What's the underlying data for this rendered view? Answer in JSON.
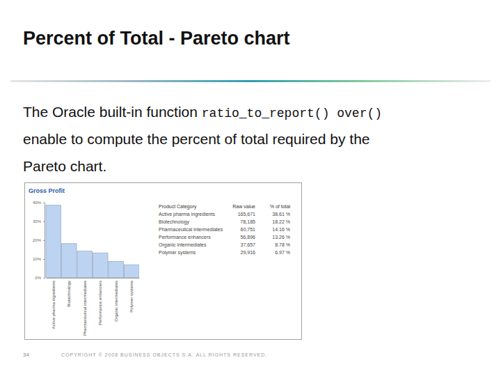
{
  "slide": {
    "title": "Percent of Total - Pareto chart",
    "body": [
      {
        "text": "The Oracle built-in function ",
        "code": "ratio_to_report() over()"
      },
      {
        "text": "enable to compute the percent of total required by the"
      },
      {
        "text": "Pareto chart."
      }
    ],
    "page_number": "34",
    "footer": "COPYRIGHT © 2008 BUSINESS OBJECTS S.A. ALL RIGHTS RESERVED."
  },
  "chart_data": {
    "type": "bar",
    "title": "Gross Profit",
    "categories": [
      "Active pharma ingredients",
      "Biotechnology",
      "Pharmaceutical intermediates",
      "Performance enhancers",
      "Organic intermediates",
      "Polymer systems"
    ],
    "values": [
      38.61,
      18.22,
      14.16,
      13.26,
      8.78,
      6.97
    ],
    "color": "#bcd3f2",
    "ylim": [
      0,
      40
    ],
    "yticks": [
      {
        "value": 0,
        "label": "0%"
      },
      {
        "value": 10,
        "label": "10%"
      },
      {
        "value": 20,
        "label": "20%"
      },
      {
        "value": 30,
        "label": "30%"
      },
      {
        "value": 40,
        "label": "40%"
      }
    ],
    "grid": false
  },
  "table": {
    "header": [
      "Product Category",
      "Raw value",
      "% of total"
    ],
    "rows": [
      [
        "Active pharma ingredients",
        "165,671",
        "38.61 %"
      ],
      [
        "Biotechnology",
        "78,185",
        "18.22 %"
      ],
      [
        "Pharmaceutical intermediates",
        "60,751",
        "14.16 %"
      ],
      [
        "Performance enhancers",
        "56,896",
        "13.26 %"
      ],
      [
        "Organic intermediates",
        "37,657",
        "8.78 %"
      ],
      [
        "Polymer systems",
        "29,916",
        "6.97 %"
      ]
    ]
  }
}
